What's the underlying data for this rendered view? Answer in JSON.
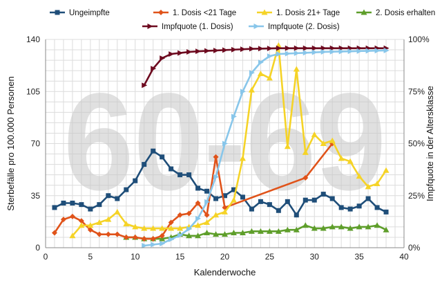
{
  "chart_data": {
    "type": "line",
    "watermark": "60-69",
    "xlabel": "Kalenderwoche",
    "ylabel": "Sterbefälle pro 100.000 Personen",
    "y2label": "Impfquote in der Altersklasse",
    "xlim": [
      0,
      40
    ],
    "ylim": [
      0,
      140
    ],
    "y2lim": [
      0,
      100
    ],
    "x_ticks": [
      0,
      5,
      10,
      15,
      20,
      25,
      30,
      35,
      40
    ],
    "y_ticks": [
      0,
      35,
      70,
      105,
      140
    ],
    "y2_ticks": [
      "0%",
      "25%",
      "50%",
      "75%",
      "100%"
    ],
    "grid": true,
    "legend_position": "top",
    "series": [
      {
        "name": "Ungeimpfte",
        "axis": "left",
        "color": "#1f4e79",
        "marker": "square",
        "x": [
          1,
          2,
          3,
          4,
          5,
          6,
          7,
          8,
          9,
          10,
          11,
          12,
          13,
          14,
          15,
          16,
          17,
          18,
          19,
          20,
          21,
          22,
          23,
          24,
          25,
          26,
          27,
          28,
          29,
          30,
          31,
          32,
          33,
          34,
          35,
          36,
          37,
          38
        ],
        "y": [
          27,
          30,
          30,
          29,
          26,
          29,
          35,
          33,
          39,
          45,
          56,
          65,
          61,
          53,
          49,
          49,
          40,
          38,
          33,
          35,
          39,
          34,
          26,
          31,
          29,
          25,
          31,
          22,
          32,
          32,
          36,
          33,
          27,
          26,
          28,
          33,
          27,
          24
        ]
      },
      {
        "name": "1. Dosis <21 Tage",
        "axis": "left",
        "color": "#e0531a",
        "marker": "diamond",
        "x": [
          1,
          2,
          3,
          4,
          5,
          6,
          7,
          8,
          9,
          10,
          11,
          12,
          13,
          14,
          15,
          16,
          17,
          18,
          19,
          20,
          29,
          32
        ],
        "y": [
          10,
          19,
          21,
          18,
          12,
          9,
          9,
          9,
          7,
          7,
          6,
          6,
          8,
          17,
          22,
          23,
          30,
          22,
          61,
          27,
          47,
          70
        ]
      },
      {
        "name": "1. Dosis 21+ Tage",
        "axis": "left",
        "color": "#f5d327",
        "marker": "triangle",
        "x": [
          3,
          4,
          5,
          6,
          7,
          8,
          9,
          10,
          11,
          12,
          13,
          14,
          15,
          16,
          17,
          18,
          19,
          20,
          21,
          22,
          23,
          24,
          25,
          26,
          27,
          28,
          29,
          30,
          31,
          32,
          33,
          34,
          35,
          36,
          37,
          38
        ],
        "y": [
          8,
          15,
          15,
          17,
          19,
          24,
          16,
          14,
          13,
          13,
          13,
          13,
          13,
          14,
          15,
          17,
          22,
          24,
          32,
          60,
          106,
          117,
          114,
          136,
          68,
          120,
          64,
          76,
          70,
          72,
          60,
          58,
          48,
          41,
          43,
          52
        ]
      },
      {
        "name": "2. Dosis erhalten",
        "axis": "left",
        "color": "#5e9e2a",
        "marker": "triangle",
        "x": [
          9,
          10,
          11,
          12,
          13,
          14,
          15,
          16,
          17,
          18,
          19,
          20,
          21,
          22,
          23,
          24,
          25,
          26,
          27,
          28,
          29,
          30,
          31,
          32,
          33,
          34,
          35,
          36,
          37,
          38
        ],
        "y": [
          7,
          7,
          6,
          6,
          6,
          7,
          9,
          8,
          8,
          10,
          9,
          9,
          10,
          10,
          11,
          11,
          11,
          11,
          12,
          12,
          15,
          13,
          13,
          14,
          14,
          13,
          14,
          14,
          15,
          12
        ]
      },
      {
        "name": "Impfquote (1. Dosis)",
        "axis": "right",
        "color": "#6d0a1f",
        "marker": "arrow",
        "x": [
          11,
          12,
          13,
          14,
          15,
          16,
          17,
          18,
          19,
          20,
          21,
          22,
          23,
          24,
          25,
          26,
          27,
          28,
          29,
          30,
          31,
          32,
          33,
          34,
          35,
          36,
          37,
          38
        ],
        "y": [
          78,
          86,
          91,
          93,
          93.5,
          94,
          94.3,
          94.5,
          94.7,
          94.9,
          95.1,
          95.3,
          95.5,
          95.6,
          95.7,
          95.8,
          95.8,
          95.8,
          95.8,
          95.8,
          95.8,
          95.8,
          95.8,
          95.8,
          95.8,
          95.8,
          95.8,
          95.8
        ]
      },
      {
        "name": "Impfquote (2. Dosis)",
        "axis": "right",
        "color": "#88c6ea",
        "marker": "arrow",
        "x": [
          11,
          12,
          13,
          14,
          15,
          16,
          17,
          18,
          19,
          20,
          21,
          22,
          23,
          24,
          25,
          26,
          27,
          28,
          29,
          30,
          31,
          32,
          33,
          34,
          35,
          36,
          37,
          38
        ],
        "y": [
          1,
          1.5,
          2,
          4,
          6,
          9,
          14,
          22,
          34,
          50,
          63,
          75,
          84,
          89,
          92,
          93,
          93.2,
          93.4,
          93.6,
          93.8,
          94,
          94.1,
          94.2,
          94.3,
          94.4,
          94.5,
          94.6,
          94.7
        ]
      }
    ]
  }
}
